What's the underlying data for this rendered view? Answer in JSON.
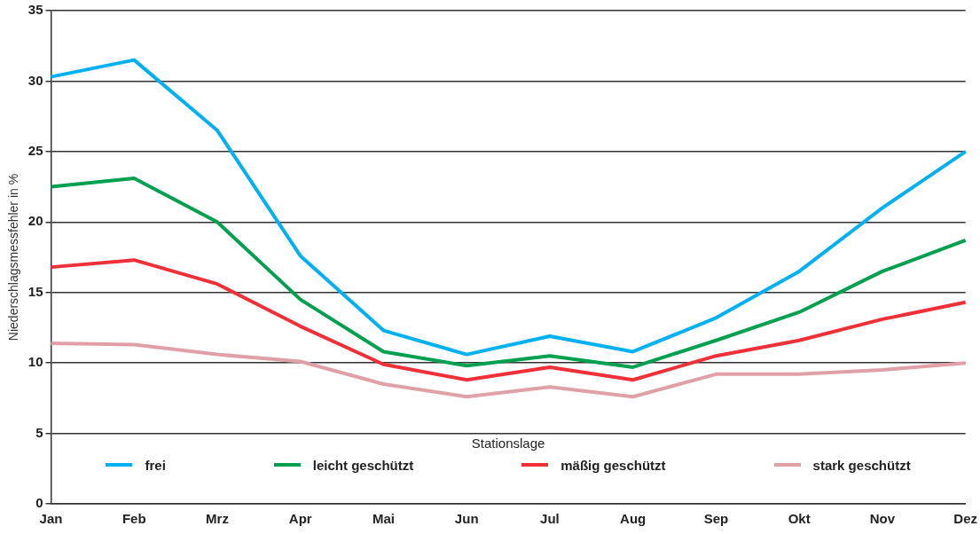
{
  "chart_data": {
    "type": "line",
    "ylabel": "Niederschlagsmessfehler in %",
    "legend_title": "Stationslage",
    "categories": [
      "Jan",
      "Feb",
      "Mrz",
      "Apr",
      "Mai",
      "Jun",
      "Jul",
      "Aug",
      "Sep",
      "Okt",
      "Nov",
      "Dez"
    ],
    "series": [
      {
        "name": "frei",
        "color": "#00b0f0",
        "values": [
          30.3,
          31.5,
          26.5,
          17.6,
          12.3,
          10.6,
          11.9,
          10.8,
          13.2,
          16.5,
          21,
          25
        ]
      },
      {
        "name": "leicht geschützt",
        "color": "#00a050",
        "values": [
          22.5,
          23.1,
          20,
          14.5,
          10.8,
          9.8,
          10.5,
          9.7,
          11.6,
          13.6,
          16.5,
          18.7
        ]
      },
      {
        "name": "mäßig geschützt",
        "color": "#f03038",
        "values": [
          16.8,
          17.3,
          15.6,
          12.6,
          9.9,
          8.8,
          9.7,
          8.8,
          10.5,
          11.6,
          13.1,
          14.3
        ]
      },
      {
        "name": "stark geschützt",
        "color": "#e0a0a8",
        "values": [
          11.4,
          11.3,
          10.6,
          10.1,
          8.5,
          7.6,
          8.3,
          7.6,
          9.2,
          9.2,
          9.5,
          10
        ]
      }
    ],
    "ylim": [
      0,
      35
    ],
    "yticks": [
      0,
      5,
      10,
      15,
      20,
      25,
      30,
      35
    ],
    "grid": "y",
    "legend": "bottom",
    "marker": "none",
    "line_style": "solid"
  }
}
